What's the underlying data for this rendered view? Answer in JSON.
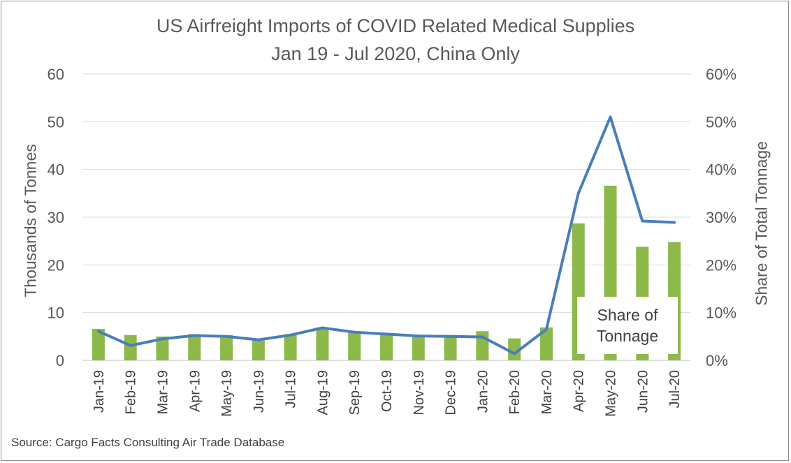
{
  "chart_data": {
    "type": "bar",
    "title": "US Airfreight Imports of COVID Related Medical Supplies",
    "subtitle": "Jan 19 - Jul 2020, China Only",
    "ylabel": "Thousands of Tonnes",
    "y2label": "Share of Total Tonnage",
    "ylim": [
      0,
      60
    ],
    "y2lim": [
      0,
      0.6
    ],
    "yticks": [
      "0",
      "10",
      "20",
      "30",
      "40",
      "50",
      "60"
    ],
    "y2ticks": [
      "0%",
      "10%",
      "20%",
      "30%",
      "40%",
      "50%",
      "60%"
    ],
    "categories": [
      "Jan-19",
      "Feb-19",
      "Mar-19",
      "Apr-19",
      "May-19",
      "Jun-19",
      "Jul-19",
      "Aug-19",
      "Sep-19",
      "Oct-19",
      "Nov-19",
      "Dec-19",
      "Jan-20",
      "Feb-20",
      "Mar-20",
      "Apr-20",
      "May-20",
      "Jun-20",
      "Jul-20"
    ],
    "series": [
      {
        "type": "bar",
        "axis": "left",
        "color": "#8db84a",
        "values": [
          6.6,
          5.3,
          5.0,
          5.5,
          5.3,
          4.6,
          5.5,
          6.9,
          6.0,
          5.5,
          5.3,
          5.3,
          6.1,
          4.6,
          6.9,
          28.7,
          36.6,
          23.8,
          24.8
        ]
      },
      {
        "type": "line",
        "axis": "right",
        "color": "#4a7ebb",
        "values": [
          0.061,
          0.031,
          0.045,
          0.052,
          0.05,
          0.043,
          0.053,
          0.068,
          0.059,
          0.055,
          0.051,
          0.05,
          0.049,
          0.014,
          0.065,
          0.35,
          0.51,
          0.292,
          0.289
        ]
      }
    ],
    "grid": true,
    "callout": [
      "Share of",
      "Tonnage"
    ],
    "source": "Source: Cargo Facts Consulting Air Trade Database"
  }
}
